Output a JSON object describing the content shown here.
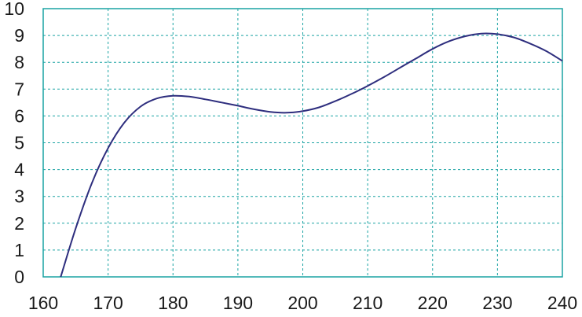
{
  "chart_data": {
    "type": "line",
    "title": "",
    "xlabel": "",
    "ylabel": "",
    "xlim": [
      160,
      240
    ],
    "ylim": [
      0,
      10
    ],
    "grid": true,
    "legend": "none",
    "x_ticks": [
      160,
      170,
      180,
      190,
      200,
      210,
      220,
      230,
      240
    ],
    "y_ticks": [
      0,
      1,
      2,
      3,
      4,
      5,
      6,
      7,
      8,
      9,
      10
    ],
    "x_tick_labels": [
      "160",
      "170",
      "180",
      "190",
      "200",
      "210",
      "220",
      "230",
      "240"
    ],
    "y_tick_labels": [
      "0",
      "1",
      "2",
      "3",
      "4",
      "5",
      "6",
      "7",
      "8",
      "9",
      "10"
    ],
    "colors": {
      "line": "#2e2e7e",
      "grid": "#1aa3a3",
      "frame": "#1aa3a3"
    },
    "series": [
      {
        "x": [
          162.7,
          165,
          167.5,
          170,
          172.5,
          175,
          177.5,
          180,
          182.5,
          185,
          187.5,
          190,
          192.5,
          195,
          197.5,
          200,
          202.5,
          205,
          207.5,
          210,
          212.5,
          215,
          217.5,
          220,
          222.5,
          225,
          227.5,
          230,
          232.5,
          235,
          237.5,
          240
        ],
        "values": [
          0.0,
          1.8,
          3.5,
          4.8,
          5.75,
          6.35,
          6.65,
          6.75,
          6.72,
          6.62,
          6.5,
          6.38,
          6.25,
          6.15,
          6.12,
          6.18,
          6.32,
          6.55,
          6.82,
          7.12,
          7.45,
          7.8,
          8.15,
          8.5,
          8.78,
          8.97,
          9.07,
          9.05,
          8.93,
          8.7,
          8.42,
          8.05
        ]
      }
    ]
  }
}
